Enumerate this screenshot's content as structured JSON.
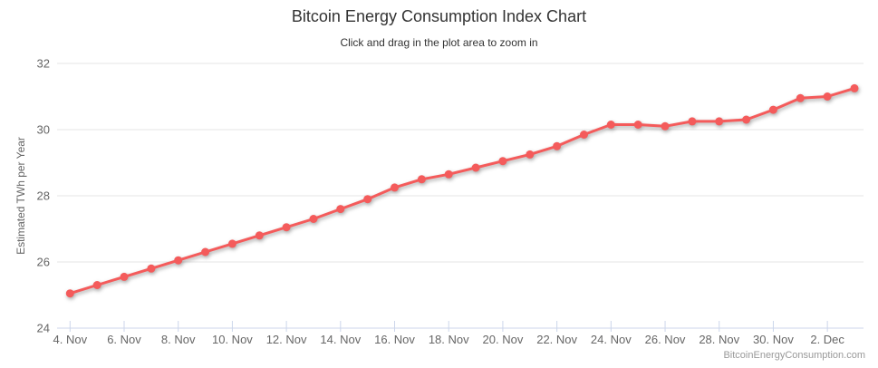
{
  "header": {
    "title": "Bitcoin Energy Consumption Index Chart",
    "subtitle": "Click and drag in the plot area to zoom in"
  },
  "watermark": "BitcoinEnergyConsumption.com",
  "colors": {
    "series": "#f45b5b",
    "gridline": "#e6e6e6",
    "axis_line": "#ccd6eb",
    "axis_label": "#666666",
    "title": "#333333",
    "watermark": "#999999"
  },
  "chart_data": {
    "type": "line",
    "title": "Bitcoin Energy Consumption Index Chart",
    "subtitle": "Click and drag in the plot area to zoom in",
    "xlabel": "",
    "ylabel": "Estimated TWh per Year",
    "ylim": [
      24,
      32
    ],
    "y_ticks": [
      24,
      26,
      28,
      30,
      32
    ],
    "grid": true,
    "legend": "none",
    "categories": [
      "4. Nov",
      "5. Nov",
      "6. Nov",
      "7. Nov",
      "8. Nov",
      "9. Nov",
      "10. Nov",
      "11. Nov",
      "12. Nov",
      "13. Nov",
      "14. Nov",
      "15. Nov",
      "16. Nov",
      "17. Nov",
      "18. Nov",
      "19. Nov",
      "20. Nov",
      "21. Nov",
      "22. Nov",
      "23. Nov",
      "24. Nov",
      "25. Nov",
      "26. Nov",
      "27. Nov",
      "28. Nov",
      "29. Nov",
      "30. Nov",
      "1. Dec",
      "2. Dec",
      "3. Dec"
    ],
    "x_tick_indices": [
      0,
      2,
      4,
      6,
      8,
      10,
      12,
      14,
      16,
      18,
      20,
      22,
      24,
      26,
      28
    ],
    "series": [
      {
        "name": "Estimated TWh per Year",
        "color": "#f45b5b",
        "values": [
          25.05,
          25.3,
          25.55,
          25.8,
          26.05,
          26.3,
          26.55,
          26.8,
          27.05,
          27.3,
          27.6,
          27.9,
          28.25,
          28.5,
          28.65,
          28.85,
          29.05,
          29.25,
          29.5,
          29.85,
          30.15,
          30.15,
          30.1,
          30.25,
          30.25,
          30.3,
          30.6,
          30.95,
          31.0,
          31.25
        ]
      }
    ]
  }
}
